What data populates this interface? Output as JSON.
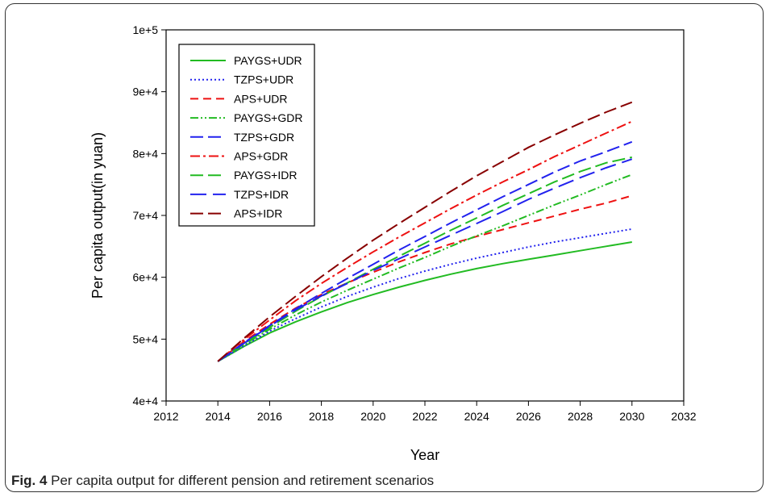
{
  "caption": {
    "label": "Fig. 4",
    "text": "Per capita output for different pension and retirement scenarios"
  },
  "chart_data": {
    "type": "line",
    "title": "",
    "xlabel": "Year",
    "ylabel": "Per capita output(in yuan)",
    "xlim": [
      2012,
      2032
    ],
    "ylim": [
      40000,
      100000
    ],
    "xticks": [
      2012,
      2014,
      2016,
      2018,
      2020,
      2022,
      2024,
      2026,
      2028,
      2030,
      2032
    ],
    "xtick_labels": [
      "2012",
      "2014",
      "2016",
      "2018",
      "2020",
      "2022",
      "2024",
      "2026",
      "2028",
      "2030",
      "2032"
    ],
    "yticks": [
      40000,
      50000,
      60000,
      70000,
      80000,
      90000,
      100000
    ],
    "ytick_labels": [
      "4e+4",
      "5e+4",
      "6e+4",
      "7e+4",
      "8e+4",
      "9e+4",
      "1e+5"
    ],
    "grid": false,
    "legend_position": "top-left",
    "x": [
      2014,
      2015,
      2016,
      2017,
      2018,
      2019,
      2020,
      2021,
      2022,
      2023,
      2024,
      2025,
      2026,
      2027,
      2028,
      2029,
      2030
    ],
    "series": [
      {
        "name": "PAYGS+UDR",
        "color": "#22bb22",
        "dash": "solid",
        "values": [
          46400,
          48800,
          51000,
          52800,
          54400,
          55900,
          57200,
          58400,
          59500,
          60500,
          61400,
          62200,
          62900,
          63600,
          64300,
          65000,
          65700
        ]
      },
      {
        "name": "TZPS+UDR",
        "color": "#2222ee",
        "dash": "dot",
        "values": [
          46400,
          48900,
          51300,
          53300,
          55200,
          56900,
          58400,
          59800,
          61000,
          62100,
          63100,
          64000,
          64900,
          65700,
          66400,
          67100,
          67800
        ]
      },
      {
        "name": "APS+UDR",
        "color": "#ee1111",
        "dash": "dash",
        "values": [
          46400,
          49600,
          52400,
          55000,
          57200,
          59100,
          60800,
          62500,
          64000,
          65400,
          66600,
          67700,
          68800,
          69900,
          71000,
          72000,
          73200
        ]
      },
      {
        "name": "PAYGS+GDR",
        "color": "#22bb22",
        "dash": "dashdotdot",
        "values": [
          46400,
          49100,
          51600,
          53900,
          56000,
          57900,
          59700,
          61500,
          63200,
          65000,
          66700,
          68300,
          70000,
          71700,
          73300,
          75000,
          76600
        ]
      },
      {
        "name": "TZPS+GDR",
        "color": "#2222ee",
        "dash": "longdash",
        "values": [
          46400,
          49400,
          52200,
          54900,
          57400,
          59800,
          62100,
          64400,
          66600,
          68800,
          70900,
          73000,
          75000,
          77000,
          78800,
          80300,
          81900
        ]
      },
      {
        "name": "APS+GDR",
        "color": "#ee1111",
        "dash": "dashdot",
        "values": [
          46400,
          49900,
          53100,
          56200,
          59000,
          61600,
          64100,
          66500,
          68800,
          71100,
          73300,
          75400,
          77400,
          79500,
          81400,
          83300,
          85200
        ]
      },
      {
        "name": "PAYGS+IDR",
        "color": "#22bb22",
        "dash": "longdash",
        "values": [
          46400,
          49200,
          51900,
          54500,
          56900,
          59100,
          61300,
          63400,
          65500,
          67600,
          69600,
          71600,
          73500,
          75400,
          77100,
          78500,
          79400
        ]
      },
      {
        "name": "TZPS+IDR",
        "color": "#2222ee",
        "dash": "longdashgap",
        "values": [
          46400,
          49300,
          52100,
          54700,
          57000,
          59000,
          61100,
          63000,
          64900,
          66800,
          68700,
          70600,
          72600,
          74400,
          76100,
          77700,
          79100
        ]
      },
      {
        "name": "APS+IDR",
        "color": "#880000",
        "dash": "longdash",
        "values": [
          46400,
          50100,
          53600,
          56900,
          60100,
          63100,
          66000,
          68700,
          71300,
          73900,
          76400,
          78700,
          81000,
          83000,
          84900,
          86700,
          88300
        ]
      }
    ]
  }
}
